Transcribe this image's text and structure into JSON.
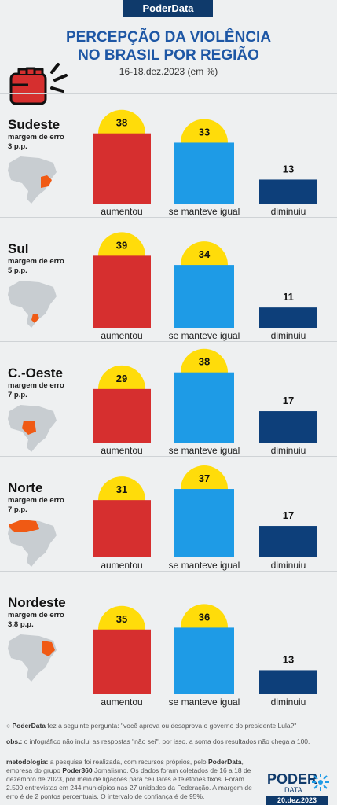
{
  "brand": "PoderData",
  "title_line1": "PERCEPÇÃO DA VIOLÊNCIA",
  "title_line2": "NO BRASIL POR REGIÃO",
  "subtitle": "16-18.dez.2023 (em %)",
  "colors": {
    "aumentou": "#d62f2f",
    "manteve": "#1e9be6",
    "diminuiu": "#0d3f7a",
    "circle": "#ffdc0a",
    "map_highlight": "#f05a14",
    "map_base": "#c8cdd1"
  },
  "chart_data": {
    "type": "bar",
    "categories": [
      "aumentou",
      "se manteve igual",
      "diminuiu"
    ],
    "regions": [
      {
        "name": "Sudeste",
        "margin": "margem de erro\n3 p.p.",
        "values": [
          38,
          33,
          13
        ]
      },
      {
        "name": "Sul",
        "margin": "margem de erro\n5 p.p.",
        "values": [
          39,
          34,
          11
        ]
      },
      {
        "name": "C.-Oeste",
        "margin": "margem de erro\n7 p.p.",
        "values": [
          29,
          38,
          17
        ]
      },
      {
        "name": "Norte",
        "margin": "margem de erro\n7 p.p.",
        "values": [
          31,
          37,
          17
        ]
      },
      {
        "name": "Nordeste",
        "margin": "margem de erro\n3,8 p.p.",
        "values": [
          35,
          36,
          13
        ]
      }
    ]
  },
  "footer": {
    "question_brand": "PoderData",
    "question": " fez a seguinte pergunta: \"você aprova ou desaprova o governo do presidente Lula?\"",
    "obs_label": "obs.:",
    "obs": " o infográfico não inclui as respostas \"não sei\", por isso, a soma dos resultados não chega a 100.",
    "met_label": "metodologia:",
    "met_1": " a pesquisa foi realizada, com recursos próprios, pelo ",
    "met_brand": "PoderData",
    "met_2": ", empresa do grupo ",
    "met_brand2": "Poder360",
    "met_3": " Jornalismo. Os dados foram coletados de 16 a 18 de dezembro de 2023, por meio de ligações para celulares e telefones fixos. Foram 2.500 entrevistas em 244 municípios nas 27 unidades da Federação. A margem de erro é de 2 pontos percentuais. O intervalo de confiança é de 95%."
  },
  "logo_top": "PODER",
  "logo_bottom": "DATA",
  "date": "20.dez.2023"
}
